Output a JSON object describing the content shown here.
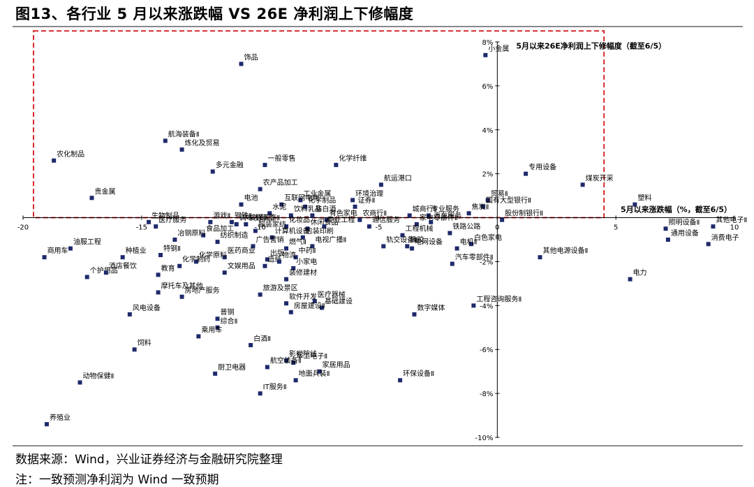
{
  "title": "图13、各行业 5 月以来涨跌幅  VS 26E 净利润上下修幅度",
  "source": "数据来源：Wind，兴业证券经济与金融研究院整理",
  "note": "注：一致预测净利润为 Wind 一致预期",
  "colors": {
    "marker": "#1f2a6b",
    "axis": "#000000",
    "highlight": "#d62728"
  },
  "chart_data": {
    "type": "scatter",
    "xlabel": "5月以来涨跌幅（%，截至6/5）",
    "ylabel": "5月以来26E净利润上下修幅度（截至6/5）",
    "xlim": [
      -20,
      10
    ],
    "ylim": [
      -10,
      8
    ],
    "xticks": [
      -20,
      -15,
      -10,
      -5,
      0,
      5,
      10
    ],
    "yticks": [
      -10,
      -8,
      -6,
      -4,
      -2,
      0,
      2,
      4,
      6,
      8
    ],
    "xtick_labels": [
      "-20",
      "-15",
      "-10",
      "-5",
      "0",
      "5",
      "10"
    ],
    "ytick_labels": [
      "-10%",
      "-8%",
      "-6%",
      "-4%",
      "-2%",
      "0",
      "2%",
      "4%",
      "6%",
      "8%"
    ],
    "highlight_region": {
      "x": [
        -20,
        4.5
      ],
      "y": [
        0,
        8.5
      ]
    },
    "points": [
      {
        "label": "饰品",
        "x": -10.8,
        "y": 7.0
      },
      {
        "label": "小金属",
        "x": -0.5,
        "y": 7.4
      },
      {
        "label": "航海装备Ⅱ",
        "x": -14.0,
        "y": 3.5
      },
      {
        "label": "炼化及贸易",
        "x": -13.3,
        "y": 3.1
      },
      {
        "label": "农化制品",
        "x": -18.7,
        "y": 2.6
      },
      {
        "label": "多元金融",
        "x": -12.0,
        "y": 2.1
      },
      {
        "label": "一般零售",
        "x": -9.8,
        "y": 2.4
      },
      {
        "label": "化学纤维",
        "x": -6.8,
        "y": 2.4
      },
      {
        "label": "专用设备",
        "x": 1.2,
        "y": 2.0
      },
      {
        "label": "航运港口",
        "x": -4.9,
        "y": 1.5
      },
      {
        "label": "煤炭开采",
        "x": 3.6,
        "y": 1.5
      },
      {
        "label": "农产品加工",
        "x": -10.0,
        "y": 1.3
      },
      {
        "label": "贵金属",
        "x": -17.1,
        "y": 0.9
      },
      {
        "label": "工业金属",
        "x": -8.3,
        "y": 0.8
      },
      {
        "label": "环境治理",
        "x": -6.1,
        "y": 0.8
      },
      {
        "label": "电池",
        "x": -10.8,
        "y": 0.6
      },
      {
        "label": "互联网电商",
        "x": -9.1,
        "y": 0.6
      },
      {
        "label": "化学制品",
        "x": -8.1,
        "y": 0.5
      },
      {
        "label": "证券Ⅱ",
        "x": -6.0,
        "y": 0.5
      },
      {
        "label": "贸易Ⅱ",
        "x": -0.4,
        "y": 0.8
      },
      {
        "label": "国有大型银行Ⅱ",
        "x": -0.6,
        "y": 0.5
      },
      {
        "label": "塑料",
        "x": 5.8,
        "y": 0.6
      },
      {
        "label": "水泥",
        "x": -9.6,
        "y": 0.2
      },
      {
        "label": "饮料乳品",
        "x": -8.7,
        "y": 0.1
      },
      {
        "label": "非白酒",
        "x": -7.8,
        "y": 0.1
      },
      {
        "label": "城商行Ⅱ",
        "x": -3.7,
        "y": 0.1
      },
      {
        "label": "专业服务",
        "x": -2.9,
        "y": 0.1
      },
      {
        "label": "焦炭Ⅱ",
        "x": -1.2,
        "y": 0.2
      },
      {
        "label": "生物制品",
        "x": -14.7,
        "y": -0.2
      },
      {
        "label": "游戏Ⅱ",
        "x": -12.1,
        "y": -0.2
      },
      {
        "label": "钢铁Ⅱ",
        "x": -11.2,
        "y": -0.2
      },
      {
        "label": "有色家电",
        "x": -7.2,
        "y": -0.1
      },
      {
        "label": "农商行Ⅱ",
        "x": -5.8,
        "y": -0.1
      },
      {
        "label": "股份制银行Ⅱ",
        "x": 0.2,
        "y": -0.1
      },
      {
        "label": "其他电子Ⅱ",
        "x": 9.1,
        "y": -0.4
      },
      {
        "label": "医疗服务",
        "x": -14.4,
        "y": -0.4
      },
      {
        "label": "调味发酵品",
        "x": -11.0,
        "y": -0.3
      },
      {
        "label": "装修装饰Ⅱ",
        "x": -10.6,
        "y": -0.3
      },
      {
        "label": "化妆品",
        "x": -8.9,
        "y": -0.4
      },
      {
        "label": "休闲食品",
        "x": -8.0,
        "y": -0.5
      },
      {
        "label": "专业工程",
        "x": -7.3,
        "y": -0.4
      },
      {
        "label": "通信服务",
        "x": -5.4,
        "y": -0.4
      },
      {
        "label": "家电零部件Ⅱ",
        "x": -3.4,
        "y": -0.3
      },
      {
        "label": "汽车服务",
        "x": -2.8,
        "y": -0.2
      },
      {
        "label": "照明设备Ⅱ",
        "x": 7.1,
        "y": -0.5
      },
      {
        "label": "食品加工",
        "x": -12.4,
        "y": -0.8
      },
      {
        "label": "服装家纺",
        "x": -10.2,
        "y": -0.6
      },
      {
        "label": "铁路公路",
        "x": -2.0,
        "y": -0.7
      },
      {
        "label": "冶钢原料",
        "x": -13.6,
        "y": -1.0
      },
      {
        "label": "纺织制造",
        "x": -11.8,
        "y": -1.1
      },
      {
        "label": "计算机设备",
        "x": -9.5,
        "y": -0.9
      },
      {
        "label": "包装印刷",
        "x": -8.2,
        "y": -0.9
      },
      {
        "label": "工程机械",
        "x": -4.0,
        "y": -0.8
      },
      {
        "label": "消费电子",
        "x": 8.9,
        "y": -1.2
      },
      {
        "label": "油服工程",
        "x": -18.0,
        "y": -1.4
      },
      {
        "label": "广告营销",
        "x": -10.3,
        "y": -1.3
      },
      {
        "label": "燃气Ⅱ",
        "x": -8.9,
        "y": -1.4
      },
      {
        "label": "电视广播Ⅱ",
        "x": -7.8,
        "y": -1.3
      },
      {
        "label": "轨交设备Ⅱ",
        "x": -4.8,
        "y": -1.3
      },
      {
        "label": "橡胶",
        "x": -3.8,
        "y": -1.3
      },
      {
        "label": "白色家电",
        "x": -1.1,
        "y": -1.2
      },
      {
        "label": "通用设备",
        "x": 7.2,
        "y": -1.0
      },
      {
        "label": "种植业",
        "x": -15.8,
        "y": -1.8
      },
      {
        "label": "特钢Ⅱ",
        "x": -14.2,
        "y": -1.7
      },
      {
        "label": "医药商业",
        "x": -11.5,
        "y": -1.8
      },
      {
        "label": "出版",
        "x": -9.7,
        "y": -1.9
      },
      {
        "label": "中药Ⅱ",
        "x": -8.5,
        "y": -1.8
      },
      {
        "label": "电网设备",
        "x": -3.6,
        "y": -1.4
      },
      {
        "label": "电机Ⅱ",
        "x": -1.7,
        "y": -1.4
      },
      {
        "label": "化学原料",
        "x": -12.7,
        "y": -2.0
      },
      {
        "label": "商用车",
        "x": -19.1,
        "y": -1.8
      },
      {
        "label": "化学制药",
        "x": -13.4,
        "y": -2.2
      },
      {
        "label": "造纸",
        "x": -9.8,
        "y": -2.2
      },
      {
        "label": "物流",
        "x": -9.2,
        "y": -2.0
      },
      {
        "label": "小家电",
        "x": -8.6,
        "y": -2.3
      },
      {
        "label": "汽车零部件Ⅱ",
        "x": -1.9,
        "y": -2.1
      },
      {
        "label": "其他电源设备Ⅱ",
        "x": 1.8,
        "y": -1.8
      },
      {
        "label": "个护用品",
        "x": -17.3,
        "y": -2.7
      },
      {
        "label": "酒店餐饮",
        "x": -16.5,
        "y": -2.5
      },
      {
        "label": "教育",
        "x": -14.3,
        "y": -2.6
      },
      {
        "label": "文娱用品",
        "x": -11.5,
        "y": -2.5
      },
      {
        "label": "装修建材",
        "x": -8.9,
        "y": -2.8
      },
      {
        "label": "电力",
        "x": 5.6,
        "y": -2.8
      },
      {
        "label": "摩托车及其他",
        "x": -14.3,
        "y": -3.4
      },
      {
        "label": "房地产服务",
        "x": -13.3,
        "y": -3.6
      },
      {
        "label": "旅游及景区",
        "x": -10.0,
        "y": -3.5
      },
      {
        "label": "医疗器械",
        "x": -7.7,
        "y": -3.8
      },
      {
        "label": "工程咨询服务Ⅱ",
        "x": -1.0,
        "y": -4.0
      },
      {
        "label": "软件开发",
        "x": -8.9,
        "y": -3.9
      },
      {
        "label": "基础建设",
        "x": -7.4,
        "y": -4.1
      },
      {
        "label": "风电设备",
        "x": -15.5,
        "y": -4.4
      },
      {
        "label": "普钢",
        "x": -11.8,
        "y": -4.6
      },
      {
        "label": "房屋建设Ⅱ",
        "x": -8.7,
        "y": -4.3
      },
      {
        "label": "数字媒体",
        "x": -3.5,
        "y": -4.4
      },
      {
        "label": "综合Ⅱ",
        "x": -11.8,
        "y": -5.0
      },
      {
        "label": "乘用车",
        "x": -12.6,
        "y": -5.4
      },
      {
        "label": "白酒Ⅱ",
        "x": -10.4,
        "y": -5.8
      },
      {
        "label": "饲料",
        "x": -15.3,
        "y": -6.0
      },
      {
        "label": "影视院线",
        "x": -8.9,
        "y": -6.5
      },
      {
        "label": "军工电子Ⅱ",
        "x": -8.6,
        "y": -6.6
      },
      {
        "label": "航空装备Ⅱ",
        "x": -9.7,
        "y": -6.8
      },
      {
        "label": "厨卫电器",
        "x": -11.9,
        "y": -7.1
      },
      {
        "label": "家居用品",
        "x": -7.5,
        "y": -7.0
      },
      {
        "label": "环保设备Ⅱ",
        "x": -4.1,
        "y": -7.4
      },
      {
        "label": "IT服务Ⅱ",
        "x": -10.0,
        "y": -8.0
      },
      {
        "label": "地面兵装Ⅱ",
        "x": -8.5,
        "y": -7.4
      },
      {
        "label": "动物保健Ⅱ",
        "x": -17.6,
        "y": -7.5
      },
      {
        "label": "养殖业",
        "x": -19.0,
        "y": -9.4
      }
    ]
  }
}
